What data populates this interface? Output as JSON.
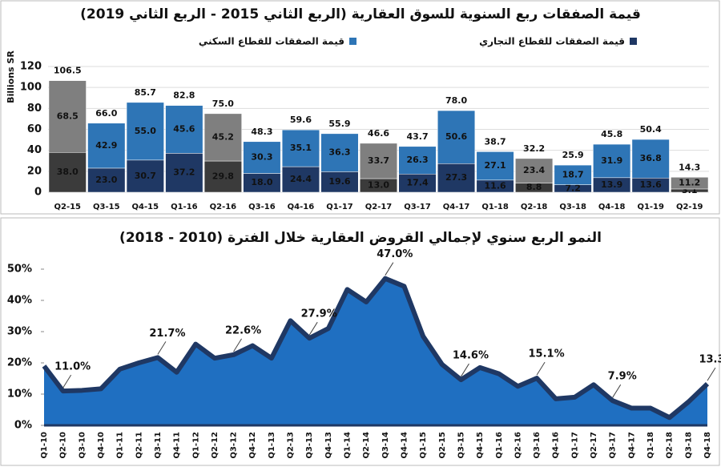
{
  "chart_data": [
    {
      "type": "stacked-bar",
      "title": "قيمة الصفقات ربع السنوية للسوق العقارية (الربع الثاني 2015 - الربع الثاني 2019)",
      "y_label": "Billions SR",
      "categories": [
        "Q2-15",
        "Q3-15",
        "Q4-15",
        "Q1-16",
        "Q2-16",
        "Q3-16",
        "Q4-16",
        "Q1-17",
        "Q2-17",
        "Q3-17",
        "Q4-17",
        "Q1-18",
        "Q2-18",
        "Q3-18",
        "Q4-18",
        "Q1-19",
        "Q2-19"
      ],
      "series": [
        {
          "name": "قيمة الصفقات للقطاع التجاري",
          "color": "#1f3864",
          "colors": [
            "#3b3b3b",
            "#1f3864",
            "#1f3864",
            "#1f3864",
            "#3b3b3b",
            "#1f3864",
            "#1f3864",
            "#1f3864",
            "#3b3b3b",
            "#1f3864",
            "#1f3864",
            "#1f3864",
            "#3b3b3b",
            "#1f3864",
            "#1f3864",
            "#1f3864",
            "#3b3b3b"
          ],
          "values": [
            38.0,
            23.0,
            30.7,
            37.2,
            29.8,
            18.0,
            24.4,
            19.6,
            13.0,
            17.4,
            27.3,
            11.6,
            8.8,
            7.2,
            13.9,
            13.6,
            3.1
          ],
          "value_labels": [
            "38.0",
            "23.0",
            "30.7",
            "37.2",
            "29.8",
            "18.0",
            "24.4",
            "19.6",
            "13.0",
            "17.4",
            "27.3",
            "11.6",
            "8.8",
            "7.2",
            "13.9",
            "13.6",
            "3.1"
          ]
        },
        {
          "name": "قيمة الصفقات للقطاع السكني",
          "color": "#2e75b6",
          "colors": [
            "#7f7f7f",
            "#2e75b6",
            "#2e75b6",
            "#2e75b6",
            "#7f7f7f",
            "#2e75b6",
            "#2e75b6",
            "#2e75b6",
            "#7f7f7f",
            "#2e75b6",
            "#2e75b6",
            "#2e75b6",
            "#7f7f7f",
            "#2e75b6",
            "#2e75b6",
            "#2e75b6",
            "#7f7f7f"
          ],
          "values": [
            68.5,
            42.9,
            55.0,
            45.6,
            45.2,
            30.3,
            35.1,
            36.3,
            33.7,
            26.3,
            50.6,
            27.1,
            23.4,
            18.7,
            31.9,
            36.8,
            11.2
          ],
          "value_labels": [
            "68.5",
            "42.9",
            "55.0",
            "45.6",
            "45.2",
            "30.3",
            "35.1",
            "36.3",
            "33.7",
            "26.3",
            "50.6",
            "27.1",
            "23.4",
            "18.7",
            "31.9",
            "36.8",
            "11.2"
          ]
        }
      ],
      "total_labels": [
        "106.5",
        "66.0",
        "85.7",
        "82.8",
        "75.0",
        "48.3",
        "59.6",
        "55.9",
        "46.6",
        "43.7",
        "78.0",
        "38.7",
        "32.2",
        "25.9",
        "45.8",
        "50.4",
        "14.3"
      ],
      "ylim": [
        0,
        120
      ],
      "yticks": [
        0,
        20,
        40,
        60,
        80,
        100,
        120
      ],
      "grid": true
    },
    {
      "type": "area",
      "title": "النمو الربع سنوي لإجمالي القروض العقارية خلال الفترة (2010 - 2018)",
      "categories": [
        "Q1-10",
        "Q2-10",
        "Q3-10",
        "Q4-10",
        "Q1-11",
        "Q2-11",
        "Q3-11",
        "Q4-11",
        "Q1-12",
        "Q2-12",
        "Q3-12",
        "Q4-12",
        "Q1-13",
        "Q2-13",
        "Q3-13",
        "Q4-13",
        "Q1-14",
        "Q2-14",
        "Q3-14",
        "Q4-14",
        "Q1-15",
        "Q2-15",
        "Q3-15",
        "Q4-15",
        "Q1-16",
        "Q2-16",
        "Q3-16",
        "Q4-16",
        "Q1-17",
        "Q2-17",
        "Q3-17",
        "Q4-17",
        "Q1-18",
        "Q2-18",
        "Q3-18",
        "Q4-18"
      ],
      "values": [
        19,
        11.0,
        11.2,
        11.7,
        18,
        20,
        21.7,
        17,
        26,
        21.5,
        22.6,
        25.5,
        21.5,
        33.5,
        27.9,
        31,
        43.5,
        39.5,
        47.0,
        44.5,
        28.5,
        19.5,
        14.6,
        18.5,
        16.5,
        12.5,
        15.1,
        8.5,
        9,
        13,
        7.9,
        5.5,
        5.5,
        2.5,
        7.5,
        13.3
      ],
      "value_labels": [
        null,
        "11.0%",
        null,
        null,
        null,
        null,
        "21.7%",
        null,
        null,
        null,
        "22.6%",
        null,
        null,
        null,
        "27.9%",
        null,
        null,
        null,
        "47.0%",
        null,
        null,
        null,
        "14.6%",
        null,
        null,
        null,
        "15.1%",
        null,
        null,
        null,
        "7.9%",
        null,
        null,
        null,
        null,
        "13.3%"
      ],
      "color": "#1f6fc1",
      "line_color": "#1f3864",
      "ylim": [
        0,
        50
      ],
      "yticks": [
        {
          "value": 0,
          "label": "0%"
        },
        {
          "value": 10,
          "label": "10%"
        },
        {
          "value": 20,
          "label": "20%"
        },
        {
          "value": 30,
          "label": "30%"
        },
        {
          "value": 40,
          "label": "40%"
        },
        {
          "value": 50,
          "label": "50%"
        }
      ],
      "grid": false
    }
  ]
}
